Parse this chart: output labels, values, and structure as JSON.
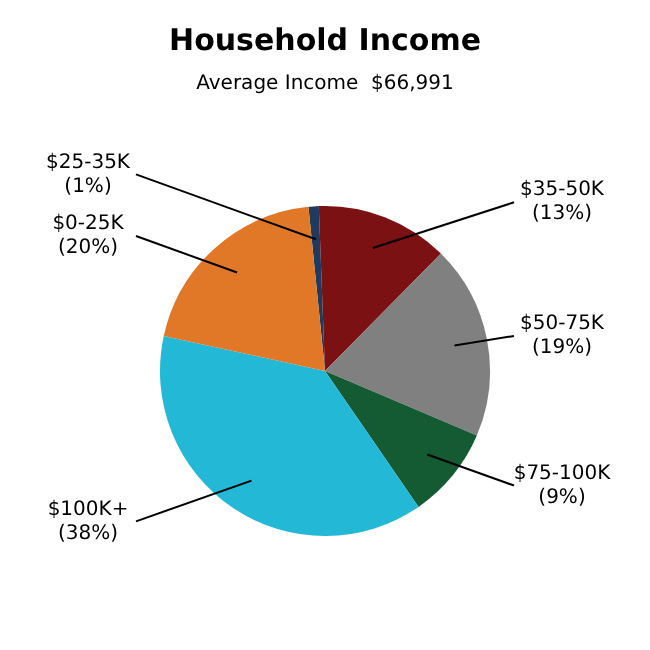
{
  "chart_data": {
    "type": "pie",
    "title": "Household Income",
    "subtitle": "Average Income  $66,991",
    "categories": [
      "$25-35K",
      "$35-50K",
      "$50-75K",
      "$75-100K",
      "$100K+",
      "$0-25K"
    ],
    "values": [
      1,
      13,
      19,
      9,
      38,
      20
    ],
    "value_labels": [
      "(1%)",
      "(13%)",
      "(19%)",
      "(9%)",
      "(38%)",
      "(20%)"
    ],
    "colors": [
      "#1f3a5f",
      "#7b1113",
      "#808080",
      "#145a32",
      "#22b8d6",
      "#e07828"
    ],
    "legend": false
  }
}
